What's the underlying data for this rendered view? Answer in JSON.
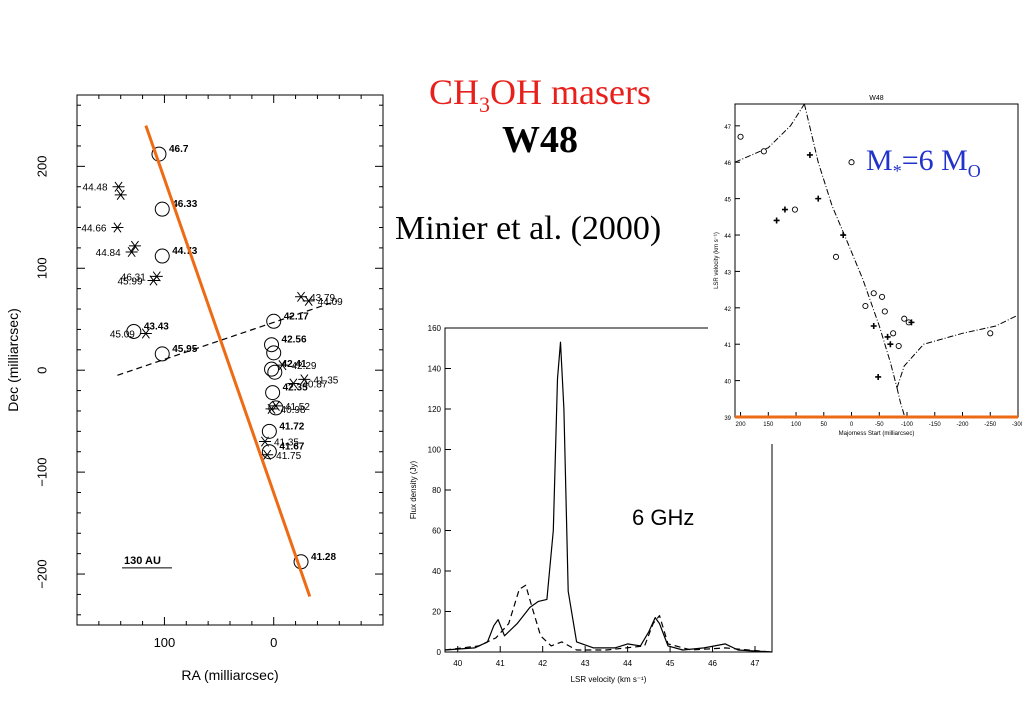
{
  "slide": {
    "title_main": "CH",
    "title_sub": "3",
    "title_rest": "OH masers",
    "subtitle": "W48",
    "citation": "Minier et al. (2000)",
    "mass_label": "M",
    "mass_sub": "*",
    "mass_value": "=6 M",
    "mass_sun": "O"
  },
  "colors": {
    "title": "#e8201c",
    "fit_line": "#ee6a14",
    "mass": "#2233cc"
  },
  "chart_data": [
    {
      "type": "scatter",
      "title": "",
      "xlabel": "RA (milliarcsec)",
      "ylabel": "Dec (milliarcsec)",
      "xlim": [
        180,
        -100
      ],
      "ylim": [
        -250,
        270
      ],
      "xticks": [
        100,
        0
      ],
      "yticks": [
        -200,
        -100,
        0,
        100,
        200
      ],
      "xticklabels": [
        "100",
        "0"
      ],
      "yticklabels": [
        "−200",
        "−100",
        "0",
        "100",
        "200"
      ],
      "scale_bar": "130 AU",
      "fit_line": {
        "x": [
          117,
          -33
        ],
        "y": [
          240,
          -222
        ]
      },
      "dashed_line": {
        "x": [
          143,
          -58
        ],
        "y": [
          -5,
          68
        ]
      },
      "circles": [
        {
          "x": 105,
          "y": 212,
          "label": "46.7",
          "bold": true
        },
        {
          "x": 102,
          "y": 158,
          "label": "46.33",
          "bold": true
        },
        {
          "x": 102,
          "y": 112,
          "label": "44.73",
          "bold": true
        },
        {
          "x": 128,
          "y": 38,
          "label": "43.43",
          "bold": true
        },
        {
          "x": 102,
          "y": 16,
          "label": "45.95",
          "bold": true
        },
        {
          "x": 0,
          "y": 48,
          "label": "42.17",
          "bold": true
        },
        {
          "x": 2,
          "y": 25,
          "label": "42.56",
          "bold": true
        },
        {
          "x": 0,
          "y": 17,
          "label": "",
          "bold": false
        },
        {
          "x": 2,
          "y": 1,
          "label": "42.41",
          "bold": true
        },
        {
          "x": -1,
          "y": -2,
          "label": "",
          "bold": false
        },
        {
          "x": 1,
          "y": -22,
          "label": "42.35",
          "bold": true
        },
        {
          "x": -2,
          "y": -37,
          "label": "",
          "bold": false
        },
        {
          "x": 4,
          "y": -60,
          "label": "41.72",
          "bold": true
        },
        {
          "x": 4,
          "y": -80,
          "label": "41.67",
          "bold": true
        },
        {
          "x": -25,
          "y": -188,
          "label": "41.28",
          "bold": true
        }
      ],
      "stars": [
        {
          "x": 142,
          "y": 180,
          "label": "44.48"
        },
        {
          "x": 140,
          "y": 172,
          "label": ""
        },
        {
          "x": 143,
          "y": 140,
          "label": "44.66"
        },
        {
          "x": 127,
          "y": 122,
          "label": ""
        },
        {
          "x": 130,
          "y": 116,
          "label": "44.84"
        },
        {
          "x": 110,
          "y": 88,
          "label": "45.99"
        },
        {
          "x": 107,
          "y": 92,
          "label": "46.31"
        },
        {
          "x": 117,
          "y": 36,
          "label": "45.09"
        },
        {
          "x": -25,
          "y": 72,
          "label": "43.79"
        },
        {
          "x": -32,
          "y": 68,
          "label": "44.09"
        },
        {
          "x": -8,
          "y": 5,
          "label": "42.29"
        },
        {
          "x": -28,
          "y": -9,
          "label": "41.35"
        },
        {
          "x": -18,
          "y": -13,
          "label": "40.87"
        },
        {
          "x": -2,
          "y": -35,
          "label": "41.52"
        },
        {
          "x": 2,
          "y": -38,
          "label": "40.98"
        },
        {
          "x": 8,
          "y": -70,
          "label": "41.35"
        },
        {
          "x": 6,
          "y": -83,
          "label": "41.75"
        }
      ]
    },
    {
      "type": "line",
      "title": "",
      "xlabel": "LSR velocity (km s⁻¹)",
      "ylabel": "Flux density (Jy)",
      "annotation": "6 GHz",
      "xlim": [
        39.7,
        47.4
      ],
      "ylim": [
        0,
        160
      ],
      "xticks": [
        40,
        41,
        42,
        43,
        44,
        45,
        46,
        47
      ],
      "yticks": [
        0,
        20,
        40,
        60,
        80,
        100,
        120,
        140,
        160
      ],
      "series": [
        {
          "style": "solid",
          "x": [
            39.7,
            40.4,
            40.7,
            40.85,
            40.95,
            41.1,
            41.4,
            41.7,
            41.9,
            42.1,
            42.25,
            42.35,
            42.42,
            42.5,
            42.6,
            42.8,
            43.2,
            43.7,
            44.0,
            44.3,
            44.5,
            44.65,
            44.75,
            44.95,
            45.3,
            45.8,
            46.3,
            46.6,
            47.4
          ],
          "y": [
            1,
            2,
            5,
            13,
            16,
            8,
            14,
            22,
            25,
            26,
            60,
            135,
            153,
            120,
            30,
            5,
            2,
            2,
            4,
            3,
            10,
            17,
            14,
            3,
            1,
            2,
            4,
            1,
            0
          ]
        },
        {
          "style": "dashed",
          "x": [
            39.7,
            40.5,
            40.9,
            41.2,
            41.45,
            41.6,
            41.75,
            41.95,
            42.2,
            42.45,
            42.8,
            43.5,
            44.4,
            44.6,
            44.75,
            44.95,
            45.5,
            46.3,
            47.4
          ],
          "y": [
            1,
            3,
            7,
            14,
            31,
            33,
            22,
            8,
            3,
            5,
            1,
            1,
            3,
            14,
            18,
            4,
            1,
            2,
            0
          ]
        }
      ]
    },
    {
      "type": "scatter",
      "title": "W48",
      "xlabel": "Majorness Start (milliarcsec)",
      "ylabel": "LSR velocity (km s⁻¹)",
      "xlim": [
        210,
        -300
      ],
      "ylim": [
        39,
        47.6
      ],
      "xticks": [
        200,
        150,
        100,
        50,
        0,
        -50,
        -100,
        -150,
        -200,
        -250,
        -300
      ],
      "yticks": [
        39,
        40,
        41,
        42,
        43,
        44,
        45,
        46,
        47
      ],
      "open_points": [
        {
          "x": 200,
          "y": 46.7
        },
        {
          "x": 158,
          "y": 46.3
        },
        {
          "x": 0,
          "y": 46.0
        },
        {
          "x": 102,
          "y": 44.7
        },
        {
          "x": 28,
          "y": 43.4
        },
        {
          "x": -40,
          "y": 42.4
        },
        {
          "x": -55,
          "y": 42.3
        },
        {
          "x": -25,
          "y": 42.05
        },
        {
          "x": -60,
          "y": 41.9
        },
        {
          "x": -95,
          "y": 41.7
        },
        {
          "x": -103,
          "y": 41.6
        },
        {
          "x": -75,
          "y": 41.3
        },
        {
          "x": -85,
          "y": 40.95
        },
        {
          "x": -250,
          "y": 41.3
        }
      ],
      "filled_points": [
        {
          "x": 135,
          "y": 44.4
        },
        {
          "x": 120,
          "y": 44.7
        },
        {
          "x": 75,
          "y": 46.2
        },
        {
          "x": 60,
          "y": 45.0
        },
        {
          "x": 15,
          "y": 44.0
        },
        {
          "x": -40,
          "y": 41.5
        },
        {
          "x": -65,
          "y": 41.2
        },
        {
          "x": -70,
          "y": 41.0
        },
        {
          "x": -48,
          "y": 40.1
        },
        {
          "x": -108,
          "y": 41.6
        }
      ],
      "dash_dot_curves": [
        {
          "x": [
            210,
            150,
            110,
            85
          ],
          "y": [
            46.0,
            46.4,
            47.0,
            47.6
          ]
        },
        {
          "x": [
            85,
            60,
            35,
            10,
            -20,
            -50,
            -70,
            -82
          ],
          "y": [
            47.6,
            46.0,
            44.8,
            43.9,
            42.8,
            41.5,
            40.5,
            39.8
          ]
        },
        {
          "x": [
            -82,
            -95,
            -130,
            -200,
            -260,
            -300
          ],
          "y": [
            39.8,
            40.4,
            41.0,
            41.3,
            41.5,
            41.8
          ]
        },
        {
          "x": [
            -82,
            -88,
            -96
          ],
          "y": [
            39.8,
            39.4,
            39.0
          ]
        }
      ]
    }
  ]
}
